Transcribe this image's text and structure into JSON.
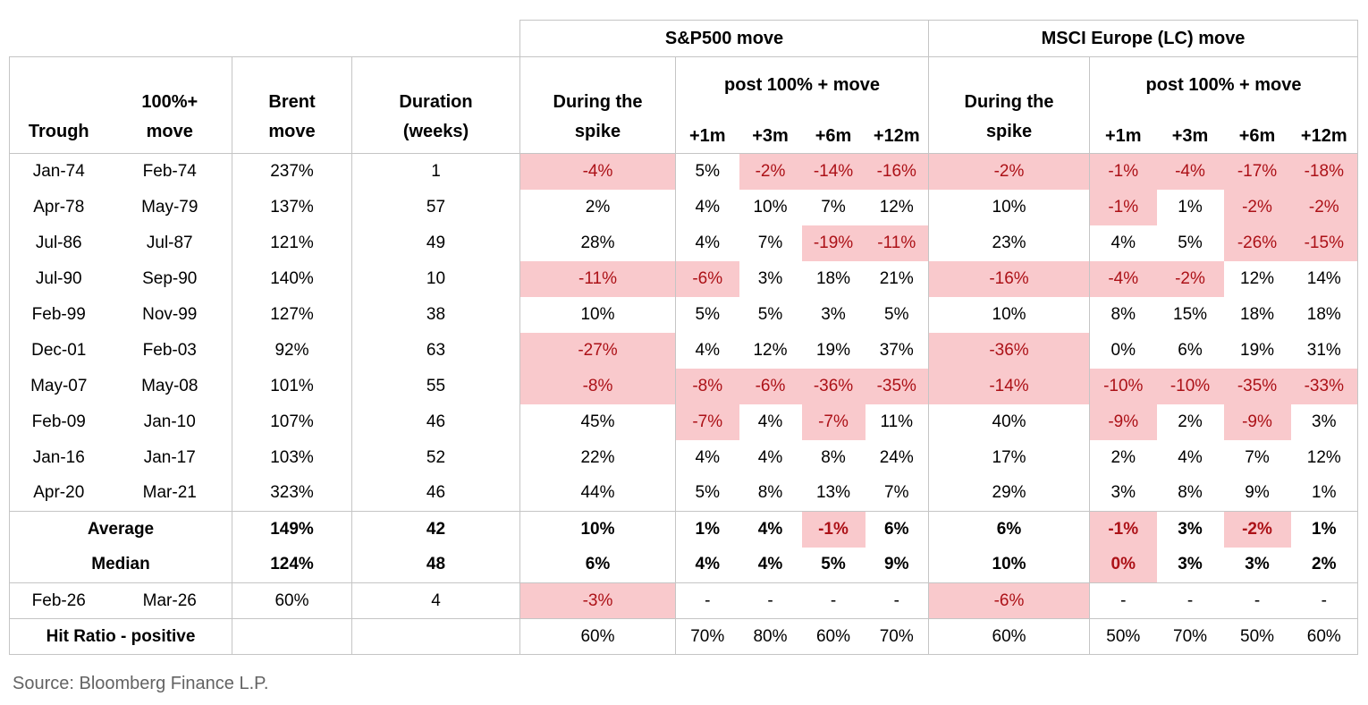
{
  "header": {
    "sp500": "S&P500 move",
    "msci": "MSCI Europe (LC) move",
    "post": "post 100% + move",
    "during": "During the\nspike",
    "trough": "Trough",
    "pct_move": "100%+\nmove",
    "brent": "Brent\nmove",
    "duration": "Duration\n(weeks)",
    "m1": "+1m",
    "m3": "+3m",
    "m6": "+6m",
    "m12": "+12m"
  },
  "source": "Source: Bloomberg Finance L.P.",
  "colors": {
    "highlight_bg": "#f9c9cc",
    "negative_text": "#ac1117",
    "border": "#c5c5c5",
    "source_text": "#636363"
  },
  "chart_data": {
    "type": "table",
    "section_headers": [
      "S&P500 move",
      "MSCI Europe (LC) move"
    ],
    "columns": [
      "Trough",
      "100%+ move",
      "Brent move",
      "Duration (weeks)",
      "S&P500 During the spike",
      "S&P500 +1m",
      "S&P500 +3m",
      "S&P500 +6m",
      "S&P500 +12m",
      "MSCI Europe (LC) During the spike",
      "MSCI +1m",
      "MSCI +3m",
      "MSCI +6m",
      "MSCI +12m"
    ],
    "layout_hints": {
      "highlighted_cells": "pink background with dark red text",
      "grid": "partial borders between column groups"
    },
    "rows": [
      {
        "trough": "Jan-74",
        "move": "Feb-74",
        "brent": "237%",
        "duration": "1",
        "sp": [
          "-4%",
          "5%",
          "-2%",
          "-14%",
          "-16%"
        ],
        "sp_hl": [
          1,
          0,
          1,
          1,
          1
        ],
        "ms": [
          "-2%",
          "-1%",
          "-4%",
          "-17%",
          "-18%"
        ],
        "ms_hl": [
          1,
          1,
          1,
          1,
          1
        ]
      },
      {
        "trough": "Apr-78",
        "move": "May-79",
        "brent": "137%",
        "duration": "57",
        "sp": [
          "2%",
          "4%",
          "10%",
          "7%",
          "12%"
        ],
        "sp_hl": [
          0,
          0,
          0,
          0,
          0
        ],
        "ms": [
          "10%",
          "-1%",
          "1%",
          "-2%",
          "-2%"
        ],
        "ms_hl": [
          0,
          1,
          0,
          1,
          1
        ]
      },
      {
        "trough": "Jul-86",
        "move": "Jul-87",
        "brent": "121%",
        "duration": "49",
        "sp": [
          "28%",
          "4%",
          "7%",
          "-19%",
          "-11%"
        ],
        "sp_hl": [
          0,
          0,
          0,
          1,
          1
        ],
        "ms": [
          "23%",
          "4%",
          "5%",
          "-26%",
          "-15%"
        ],
        "ms_hl": [
          0,
          0,
          0,
          1,
          1
        ]
      },
      {
        "trough": "Jul-90",
        "move": "Sep-90",
        "brent": "140%",
        "duration": "10",
        "sp": [
          "-11%",
          "-6%",
          "3%",
          "18%",
          "21%"
        ],
        "sp_hl": [
          1,
          1,
          0,
          0,
          0
        ],
        "ms": [
          "-16%",
          "-4%",
          "-2%",
          "12%",
          "14%"
        ],
        "ms_hl": [
          1,
          1,
          1,
          0,
          0
        ]
      },
      {
        "trough": "Feb-99",
        "move": "Nov-99",
        "brent": "127%",
        "duration": "38",
        "sp": [
          "10%",
          "5%",
          "5%",
          "3%",
          "5%"
        ],
        "sp_hl": [
          0,
          0,
          0,
          0,
          0
        ],
        "ms": [
          "10%",
          "8%",
          "15%",
          "18%",
          "18%"
        ],
        "ms_hl": [
          0,
          0,
          0,
          0,
          0
        ]
      },
      {
        "trough": "Dec-01",
        "move": "Feb-03",
        "brent": "92%",
        "duration": "63",
        "sp": [
          "-27%",
          "4%",
          "12%",
          "19%",
          "37%"
        ],
        "sp_hl": [
          1,
          0,
          0,
          0,
          0
        ],
        "ms": [
          "-36%",
          "0%",
          "6%",
          "19%",
          "31%"
        ],
        "ms_hl": [
          1,
          0,
          0,
          0,
          0
        ]
      },
      {
        "trough": "May-07",
        "move": "May-08",
        "brent": "101%",
        "duration": "55",
        "sp": [
          "-8%",
          "-8%",
          "-6%",
          "-36%",
          "-35%"
        ],
        "sp_hl": [
          1,
          1,
          1,
          1,
          1
        ],
        "ms": [
          "-14%",
          "-10%",
          "-10%",
          "-35%",
          "-33%"
        ],
        "ms_hl": [
          1,
          1,
          1,
          1,
          1
        ]
      },
      {
        "trough": "Feb-09",
        "move": "Jan-10",
        "brent": "107%",
        "duration": "46",
        "sp": [
          "45%",
          "-7%",
          "4%",
          "-7%",
          "11%"
        ],
        "sp_hl": [
          0,
          1,
          0,
          1,
          0
        ],
        "ms": [
          "40%",
          "-9%",
          "2%",
          "-9%",
          "3%"
        ],
        "ms_hl": [
          0,
          1,
          0,
          1,
          0
        ]
      },
      {
        "trough": "Jan-16",
        "move": "Jan-17",
        "brent": "103%",
        "duration": "52",
        "sp": [
          "22%",
          "4%",
          "4%",
          "8%",
          "24%"
        ],
        "sp_hl": [
          0,
          0,
          0,
          0,
          0
        ],
        "ms": [
          "17%",
          "2%",
          "4%",
          "7%",
          "12%"
        ],
        "ms_hl": [
          0,
          0,
          0,
          0,
          0
        ]
      },
      {
        "trough": "Apr-20",
        "move": "Mar-21",
        "brent": "323%",
        "duration": "46",
        "sp": [
          "44%",
          "5%",
          "8%",
          "13%",
          "7%"
        ],
        "sp_hl": [
          0,
          0,
          0,
          0,
          0
        ],
        "ms": [
          "29%",
          "3%",
          "8%",
          "9%",
          "1%"
        ],
        "ms_hl": [
          0,
          0,
          0,
          0,
          0
        ]
      },
      {
        "label": "Average",
        "bold": true,
        "top": true,
        "brent": "149%",
        "duration": "42",
        "sp": [
          "10%",
          "1%",
          "4%",
          "-1%",
          "6%"
        ],
        "sp_hl": [
          0,
          0,
          0,
          1,
          0
        ],
        "ms": [
          "6%",
          "-1%",
          "3%",
          "-2%",
          "1%"
        ],
        "ms_hl": [
          0,
          1,
          0,
          1,
          0
        ]
      },
      {
        "label": "Median",
        "bold": true,
        "brent": "124%",
        "duration": "48",
        "sp": [
          "6%",
          "4%",
          "4%",
          "5%",
          "9%"
        ],
        "sp_hl": [
          0,
          0,
          0,
          0,
          0
        ],
        "ms": [
          "10%",
          "0%",
          "3%",
          "3%",
          "2%"
        ],
        "ms_hl": [
          0,
          1,
          0,
          0,
          0
        ]
      },
      {
        "trough": "Feb-26",
        "move": "Mar-26",
        "top": true,
        "brent": "60%",
        "duration": "4",
        "sp": [
          "-3%",
          "-",
          "-",
          "-",
          "-"
        ],
        "sp_hl": [
          1,
          0,
          0,
          0,
          0
        ],
        "ms": [
          "-6%",
          "-",
          "-",
          "-",
          "-"
        ],
        "ms_hl": [
          1,
          0,
          0,
          0,
          0
        ]
      },
      {
        "label": "Hit Ratio - positive",
        "top": true,
        "last": true,
        "brent": "",
        "duration": "",
        "sp": [
          "60%",
          "70%",
          "80%",
          "60%",
          "70%"
        ],
        "sp_hl": [
          0,
          0,
          0,
          0,
          0
        ],
        "ms": [
          "60%",
          "50%",
          "70%",
          "50%",
          "60%"
        ],
        "ms_hl": [
          0,
          0,
          0,
          0,
          0
        ]
      }
    ]
  }
}
